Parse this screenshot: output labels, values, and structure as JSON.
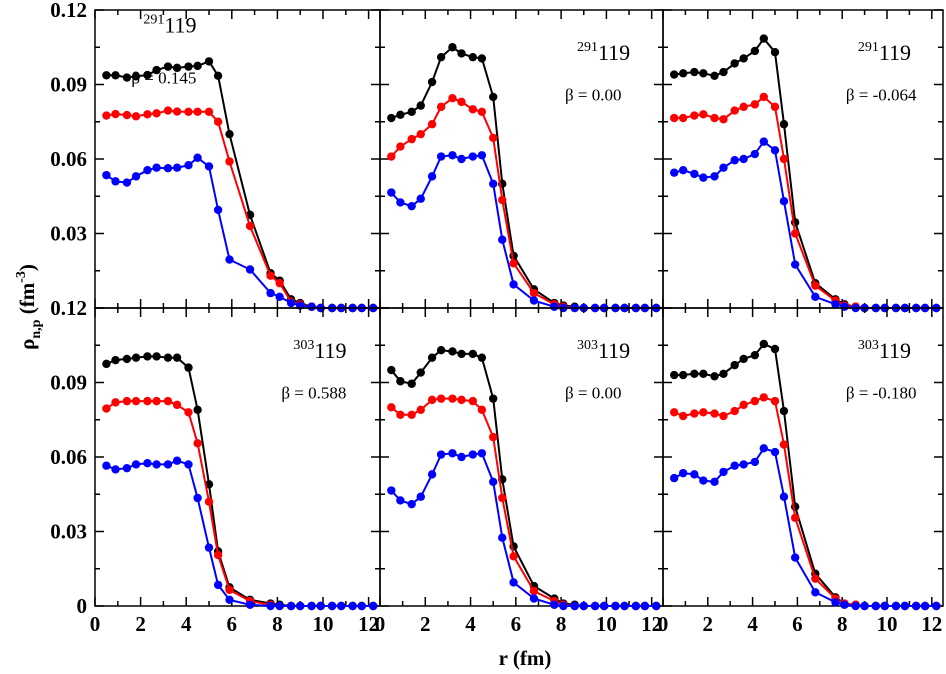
{
  "chart_data": {
    "type": "line",
    "ylabel": "ρn,p (fm-3)",
    "ylabel_parts": {
      "rho": "ρ",
      "sub": "n,p",
      "open": " (fm",
      "exp": "-3",
      "close": ")"
    },
    "xlabel": "r (fm)",
    "x_ticks": [
      "0",
      "2",
      "4",
      "6",
      "8",
      "10",
      "12"
    ],
    "y_ticks_top": [
      "0.12",
      "0.09",
      "0.06",
      "0.03"
    ],
    "y_ticks_bottom": [
      "0",
      "0.03",
      "0.06",
      "0.09"
    ],
    "y_overlap_label": "0.12",
    "xlim": [
      0,
      12.5
    ],
    "ylim": [
      0,
      0.12
    ],
    "series_colors": [
      "#000000",
      "#ff0000",
      "#0000ff"
    ],
    "panels": [
      {
        "id": "p291-0.145",
        "mass": "291",
        "z": "119",
        "beta": "β = 0.145",
        "col": 0,
        "row": 0,
        "label_pos": {
          "mass_x": 2.12,
          "y_mass": 0.111,
          "beta_y": 0.0905
        },
        "x": [
          0.5,
          0.9,
          1.4,
          1.8,
          2.3,
          2.7,
          3.2,
          3.6,
          4.1,
          4.5,
          5.0,
          5.4,
          5.9,
          6.8,
          7.7,
          8.1,
          8.6,
          9.0,
          9.5,
          9.9,
          10.4,
          10.8,
          11.3,
          11.7,
          12.2
        ],
        "series": [
          {
            "name": "black",
            "values": [
              0.0937,
              0.0937,
              0.0928,
              0.0933,
              0.0938,
              0.0958,
              0.0972,
              0.0967,
              0.0972,
              0.0975,
              0.0993,
              0.0935,
              0.07,
              0.0375,
              0.014,
              0.011,
              0.0035,
              0.002,
              0.0005,
              0.0,
              0.0,
              0.0,
              0.0,
              0.0,
              0.0
            ]
          },
          {
            "name": "red",
            "values": [
              0.0775,
              0.0781,
              0.0777,
              0.0772,
              0.078,
              0.0784,
              0.0795,
              0.0791,
              0.079,
              0.079,
              0.079,
              0.075,
              0.059,
              0.033,
              0.013,
              0.01,
              0.0025,
              0.0015,
              0.0005,
              0.0,
              0.0,
              0.0,
              0.0,
              0.0,
              0.0
            ]
          },
          {
            "name": "blue",
            "values": [
              0.0535,
              0.051,
              0.0505,
              0.053,
              0.0555,
              0.0565,
              0.0563,
              0.0565,
              0.0575,
              0.0605,
              0.057,
              0.0395,
              0.0195,
              0.0155,
              0.006,
              0.0045,
              0.002,
              0.001,
              0.0005,
              0.0,
              0.0,
              0.0,
              0.0,
              0.0,
              0.0
            ]
          }
        ]
      },
      {
        "id": "p291-0.00",
        "mass": "291",
        "z": "119",
        "beta": "β = 0.00",
        "col": 1,
        "row": 0,
        "label_pos": {
          "mass_x": 8.7,
          "y_mass": 0.0999,
          "beta_y": 0.0835
        },
        "x": [
          0.5,
          0.9,
          1.4,
          1.8,
          2.3,
          2.7,
          3.2,
          3.6,
          4.1,
          4.5,
          5.0,
          5.4,
          5.9,
          6.8,
          7.7,
          8.1,
          8.6,
          9.0,
          9.5,
          9.9,
          10.4,
          10.8,
          11.3,
          11.7,
          12.2
        ],
        "series": [
          {
            "name": "black",
            "values": [
              0.0765,
              0.0778,
              0.079,
              0.0815,
              0.091,
              0.101,
              0.105,
              0.1025,
              0.101,
              0.1005,
              0.085,
              0.05,
              0.021,
              0.0075,
              0.002,
              0.001,
              0.0005,
              0.0,
              0.0,
              0.0,
              0.0,
              0.0,
              0.0,
              0.0,
              0.0
            ]
          },
          {
            "name": "red",
            "values": [
              0.061,
              0.065,
              0.068,
              0.07,
              0.074,
              0.081,
              0.0845,
              0.083,
              0.08,
              0.079,
              0.0685,
              0.0435,
              0.018,
              0.006,
              0.0015,
              0.0005,
              0.0,
              0.0,
              0.0,
              0.0,
              0.0,
              0.0,
              0.0,
              0.0,
              0.0
            ]
          },
          {
            "name": "blue",
            "values": [
              0.0465,
              0.0425,
              0.041,
              0.044,
              0.053,
              0.061,
              0.0615,
              0.06,
              0.061,
              0.0615,
              0.05,
              0.0275,
              0.0095,
              0.003,
              0.0005,
              0.0,
              0.0,
              0.0,
              0.0,
              0.0,
              0.0,
              0.0,
              0.0,
              0.0,
              0.0
            ]
          }
        ]
      },
      {
        "id": "p291--0.064",
        "mass": "291",
        "z": "119",
        "beta": "β = -0.064",
        "col": 2,
        "row": 0,
        "label_pos": {
          "mass_x": 8.7,
          "y_mass": 0.0999,
          "beta_y": 0.0835
        },
        "x": [
          0.5,
          0.9,
          1.4,
          1.8,
          2.3,
          2.7,
          3.2,
          3.6,
          4.1,
          4.5,
          5.0,
          5.4,
          5.9,
          6.8,
          7.7,
          8.1,
          8.6,
          9.0,
          9.5,
          9.9,
          10.4,
          10.8,
          11.3,
          11.7,
          12.2
        ],
        "series": [
          {
            "name": "black",
            "values": [
              0.094,
              0.0945,
              0.095,
              0.0945,
              0.0935,
              0.095,
              0.0985,
              0.1005,
              0.1035,
              0.1085,
              0.103,
              0.074,
              0.0345,
              0.01,
              0.0035,
              0.0015,
              0.0005,
              0.0,
              0.0,
              0.0,
              0.0,
              0.0,
              0.0,
              0.0,
              0.0
            ]
          },
          {
            "name": "red",
            "values": [
              0.0765,
              0.0765,
              0.0775,
              0.078,
              0.0765,
              0.076,
              0.0795,
              0.081,
              0.082,
              0.085,
              0.081,
              0.06,
              0.03,
              0.009,
              0.003,
              0.001,
              0.0005,
              0.0,
              0.0,
              0.0,
              0.0,
              0.0,
              0.0,
              0.0,
              0.0
            ]
          },
          {
            "name": "blue",
            "values": [
              0.0545,
              0.0555,
              0.054,
              0.0525,
              0.053,
              0.0565,
              0.0595,
              0.06,
              0.062,
              0.067,
              0.0635,
              0.043,
              0.0175,
              0.0045,
              0.0015,
              0.0005,
              0.0,
              0.0,
              0.0,
              0.0,
              0.0,
              0.0,
              0.0,
              0.0,
              0.0
            ]
          }
        ]
      },
      {
        "id": "p303-0.588",
        "mass": "303",
        "z": "119",
        "beta": "β = 0.588",
        "col": 0,
        "row": 1,
        "label_pos": {
          "mass_x": 8.7,
          "y_mass": 0.0999,
          "beta_y": 0.0835
        },
        "x": [
          0.5,
          0.9,
          1.4,
          1.8,
          2.3,
          2.7,
          3.2,
          3.6,
          4.1,
          4.5,
          5.0,
          5.4,
          5.9,
          6.8,
          7.7,
          8.1,
          8.6,
          9.0,
          9.5,
          9.9,
          10.4,
          10.8,
          11.3,
          11.7,
          12.2
        ],
        "series": [
          {
            "name": "black",
            "values": [
              0.0975,
              0.099,
              0.0995,
              0.1,
              0.1005,
              0.1005,
              0.1,
              0.1,
              0.096,
              0.079,
              0.049,
              0.022,
              0.0075,
              0.0025,
              0.001,
              0.0005,
              0.0,
              0.0,
              0.0,
              0.0,
              0.0,
              0.0,
              0.0,
              0.0,
              0.0
            ]
          },
          {
            "name": "red",
            "values": [
              0.0795,
              0.082,
              0.0825,
              0.0825,
              0.0825,
              0.0825,
              0.0825,
              0.081,
              0.078,
              0.0655,
              0.042,
              0.0205,
              0.0065,
              0.002,
              0.0005,
              0.0,
              0.0,
              0.0,
              0.0,
              0.0,
              0.0,
              0.0,
              0.0,
              0.0,
              0.0
            ]
          },
          {
            "name": "blue",
            "values": [
              0.0565,
              0.055,
              0.0555,
              0.057,
              0.0575,
              0.057,
              0.057,
              0.0585,
              0.057,
              0.0435,
              0.0235,
              0.0085,
              0.0025,
              0.0005,
              0.0,
              0.0,
              0.0,
              0.0,
              0.0,
              0.0,
              0.0,
              0.0,
              0.0,
              0.0,
              0.0
            ]
          }
        ]
      },
      {
        "id": "p303-0.00",
        "mass": "303",
        "z": "119",
        "beta": "β = 0.00",
        "col": 1,
        "row": 1,
        "label_pos": {
          "mass_x": 8.7,
          "y_mass": 0.0999,
          "beta_y": 0.0835
        },
        "x": [
          0.5,
          0.9,
          1.4,
          1.8,
          2.3,
          2.7,
          3.2,
          3.6,
          4.1,
          4.5,
          5.0,
          5.4,
          5.9,
          6.8,
          7.7,
          8.1,
          8.6,
          9.0,
          9.5,
          9.9,
          10.4,
          10.8,
          11.3,
          11.7,
          12.2
        ],
        "series": [
          {
            "name": "black",
            "values": [
              0.095,
              0.0905,
              0.0895,
              0.094,
              0.1,
              0.103,
              0.1025,
              0.1015,
              0.1015,
              0.1,
              0.0835,
              0.051,
              0.024,
              0.008,
              0.003,
              0.001,
              0.0005,
              0.0,
              0.0,
              0.0,
              0.0,
              0.0,
              0.0,
              0.0,
              0.0
            ]
          },
          {
            "name": "red",
            "values": [
              0.08,
              0.077,
              0.077,
              0.079,
              0.083,
              0.0835,
              0.0835,
              0.083,
              0.0825,
              0.079,
              0.068,
              0.0435,
              0.02,
              0.006,
              0.002,
              0.0005,
              0.0,
              0.0,
              0.0,
              0.0,
              0.0,
              0.0,
              0.0,
              0.0,
              0.0
            ]
          },
          {
            "name": "blue",
            "values": [
              0.0465,
              0.0425,
              0.041,
              0.044,
              0.053,
              0.061,
              0.0615,
              0.06,
              0.061,
              0.0615,
              0.05,
              0.0275,
              0.0095,
              0.003,
              0.0005,
              0.0,
              0.0,
              0.0,
              0.0,
              0.0,
              0.0,
              0.0,
              0.0,
              0.0,
              0.0
            ]
          }
        ]
      },
      {
        "id": "p303--0.180",
        "mass": "303",
        "z": "119",
        "beta": "β = -0.180",
        "col": 2,
        "row": 1,
        "label_pos": {
          "mass_x": 8.7,
          "y_mass": 0.0999,
          "beta_y": 0.0835
        },
        "x": [
          0.5,
          0.9,
          1.4,
          1.8,
          2.3,
          2.7,
          3.2,
          3.6,
          4.1,
          4.5,
          5.0,
          5.4,
          5.9,
          6.8,
          7.7,
          8.1,
          8.6,
          9.0,
          9.5,
          9.9,
          10.4,
          10.8,
          11.3,
          11.7,
          12.2
        ],
        "series": [
          {
            "name": "black",
            "values": [
              0.093,
              0.093,
              0.0935,
              0.0935,
              0.0925,
              0.0935,
              0.097,
              0.0995,
              0.101,
              0.1055,
              0.1035,
              0.0785,
              0.04,
              0.013,
              0.0035,
              0.001,
              0.0005,
              0.0,
              0.0,
              0.0,
              0.0,
              0.0,
              0.0,
              0.0,
              0.0
            ]
          },
          {
            "name": "red",
            "values": [
              0.078,
              0.0765,
              0.0775,
              0.078,
              0.0775,
              0.0765,
              0.0785,
              0.081,
              0.0825,
              0.084,
              0.0825,
              0.065,
              0.0355,
              0.011,
              0.003,
              0.001,
              0.0005,
              0.0,
              0.0,
              0.0,
              0.0,
              0.0,
              0.0,
              0.0,
              0.0
            ]
          },
          {
            "name": "blue",
            "values": [
              0.0515,
              0.0535,
              0.053,
              0.0505,
              0.05,
              0.054,
              0.0565,
              0.057,
              0.058,
              0.0635,
              0.062,
              0.044,
              0.0195,
              0.0055,
              0.0015,
              0.0005,
              0.0,
              0.0,
              0.0,
              0.0,
              0.0,
              0.0,
              0.0,
              0.0,
              0.0
            ]
          }
        ]
      }
    ]
  }
}
